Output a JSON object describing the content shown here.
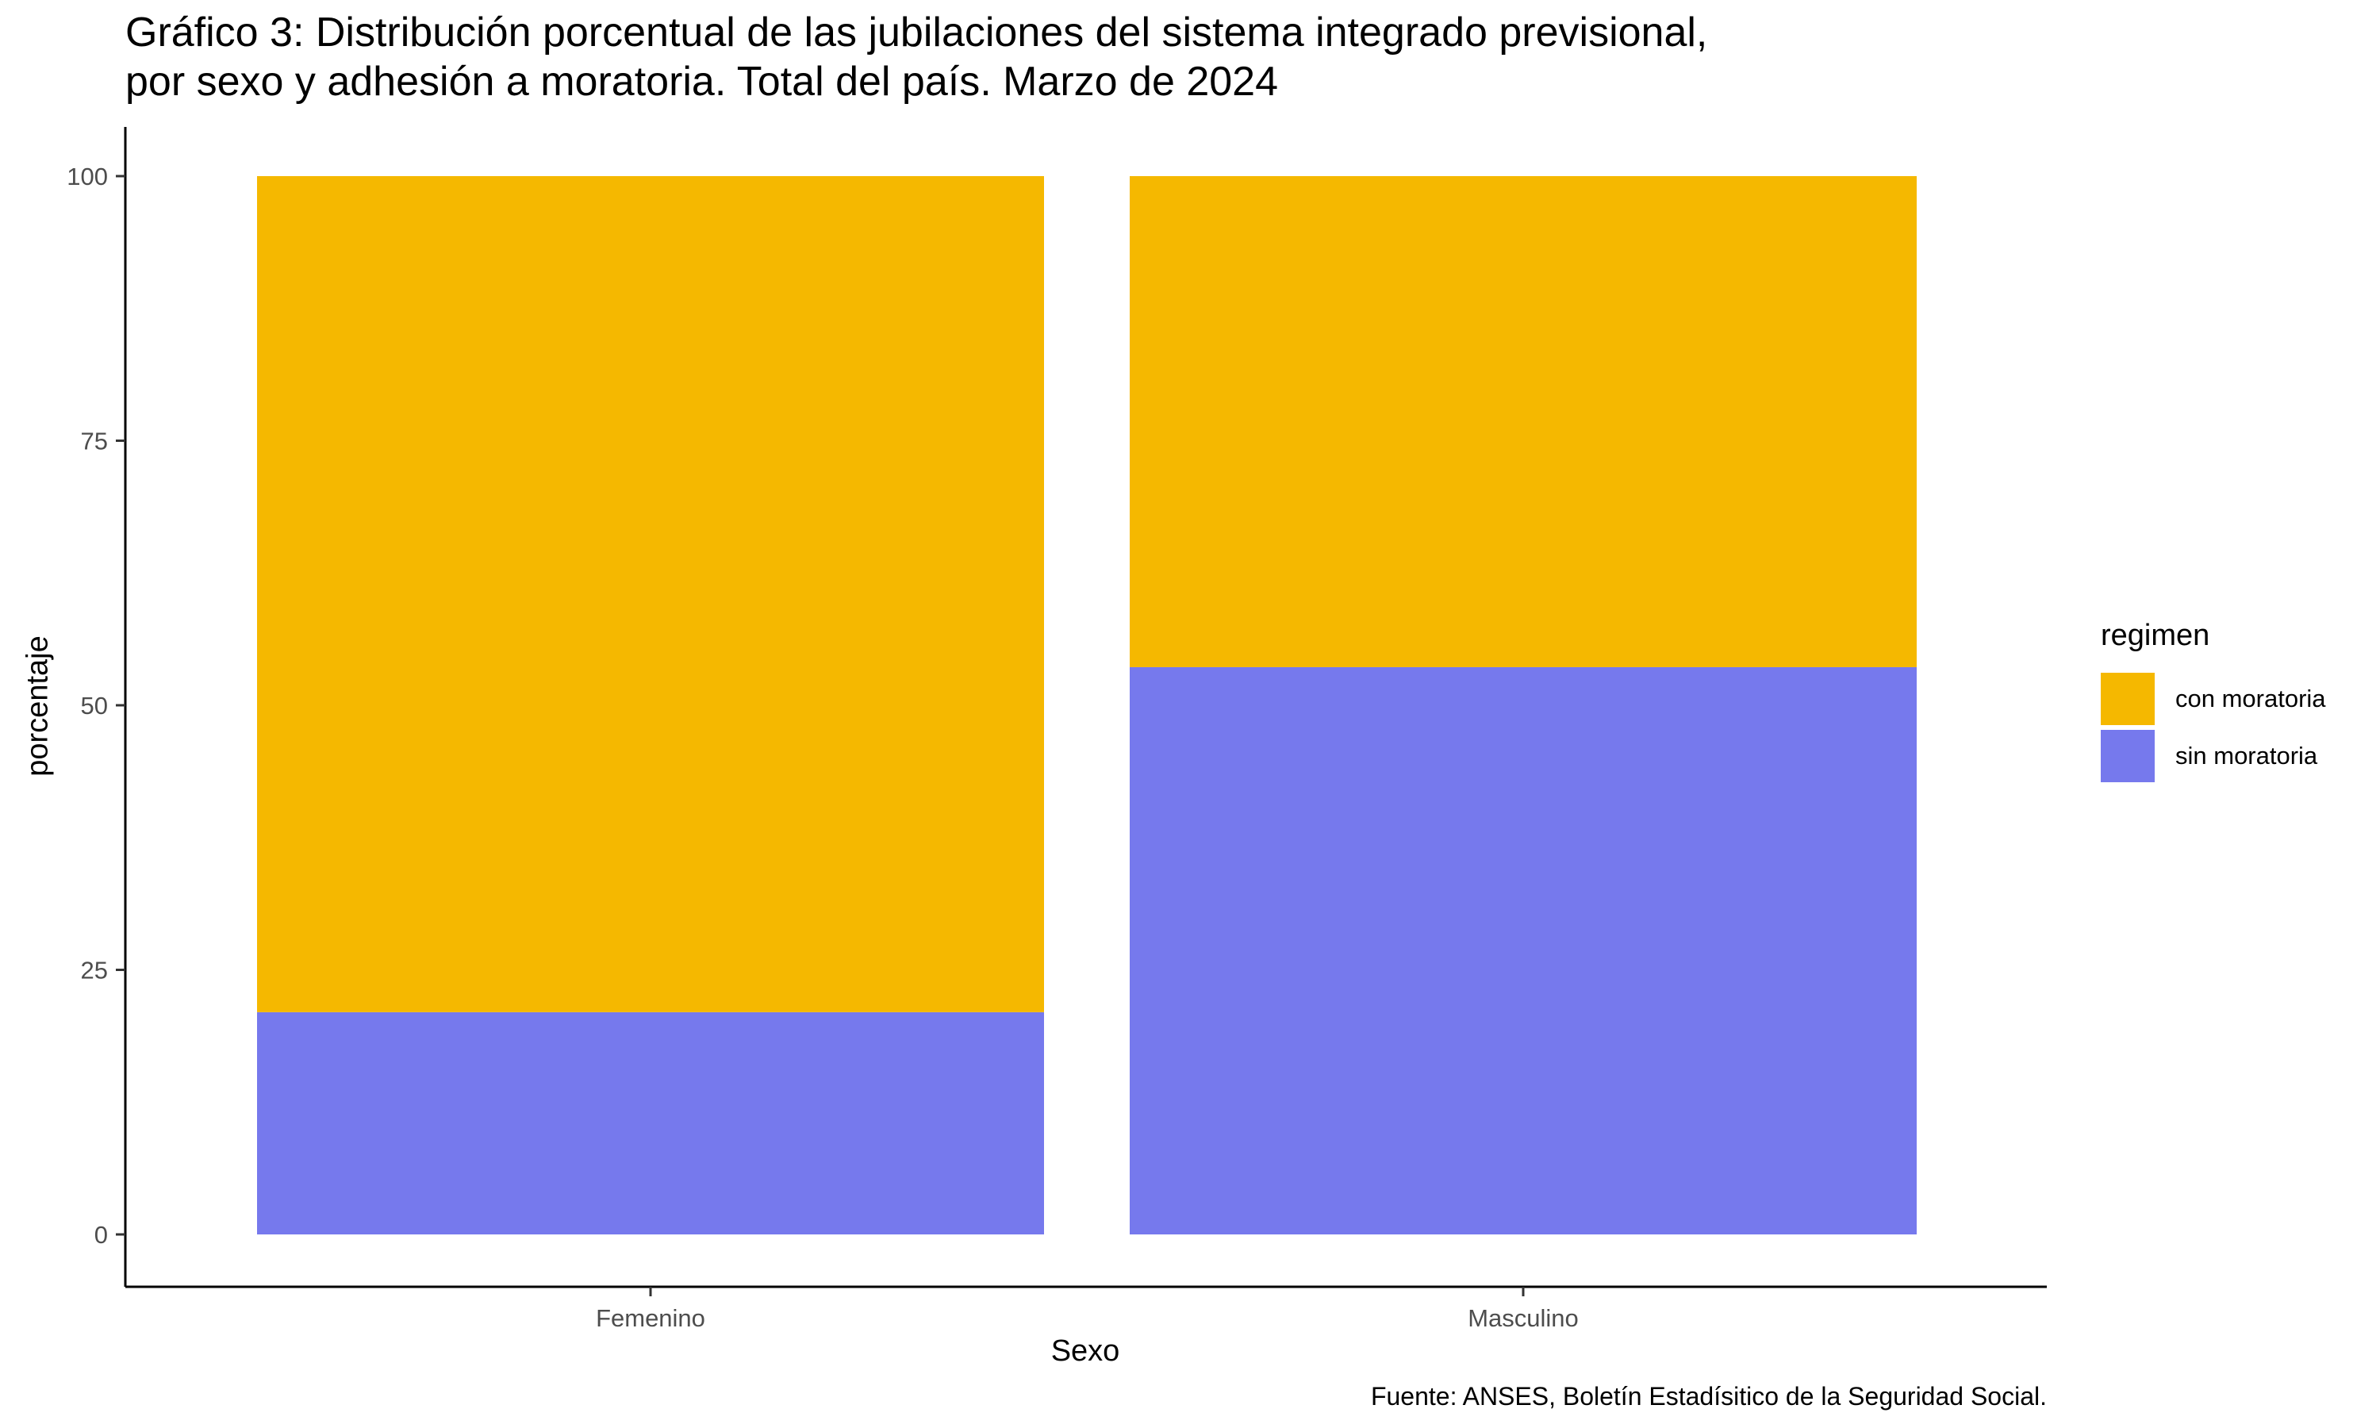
{
  "chart_data": {
    "type": "bar",
    "stacked": true,
    "title_lines": [
      "Gráfico 3: Distribución porcentual de las jubilaciones del sistema integrado previsional,",
      "por sexo y adhesión a moratoria. Total del país. Marzo de 2024"
    ],
    "xlabel": "Sexo",
    "ylabel": "porcentaje",
    "caption": "Fuente: ANSES, Boletín Estadísitico de la Seguridad Social.",
    "categories": [
      "Femenino",
      "Masculino"
    ],
    "ylim": [
      0,
      100
    ],
    "yticks": [
      "0",
      "25",
      "50",
      "75",
      "100"
    ],
    "legend_title": "regimen",
    "legend_position": "right",
    "grid": false,
    "series": [
      {
        "name": "sin moratoria",
        "color": "#7679ed",
        "values": [
          21,
          53.6
        ]
      },
      {
        "name": "con moratoria",
        "color": "#f5b800",
        "values": [
          79,
          46.4
        ]
      }
    ],
    "legend_order": [
      "con moratoria",
      "sin moratoria"
    ]
  }
}
